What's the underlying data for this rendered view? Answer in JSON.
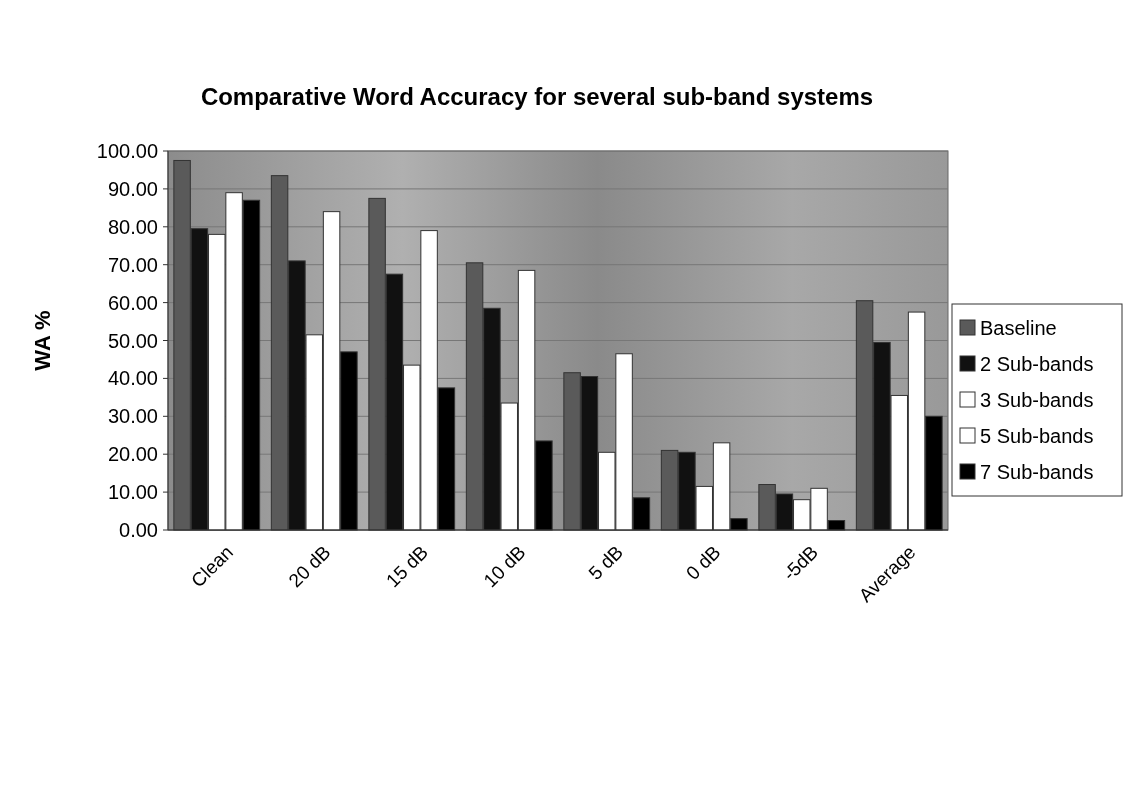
{
  "chart_data": {
    "type": "bar",
    "title": "Comparative Word Accuracy for several sub-band systems",
    "ylabel": "WA %",
    "categories": [
      "Clean",
      "20 dB",
      "15 dB",
      "10 dB",
      "5 dB",
      "0 dB",
      "-5dB",
      "Average"
    ],
    "series": [
      {
        "name": "Baseline",
        "color": "#5a5a5a",
        "values": [
          97.5,
          93.5,
          87.5,
          70.5,
          41.5,
          21,
          12,
          60.5
        ]
      },
      {
        "name": "2 Sub-bands",
        "color": "#111111",
        "values": [
          79.5,
          71,
          67.5,
          58.5,
          40.5,
          20.5,
          9.5,
          49.5
        ]
      },
      {
        "name": "3 Sub-bands",
        "color": "#ffffff",
        "values": [
          78,
          51.5,
          43.5,
          33.5,
          20.5,
          11.5,
          8,
          35.5
        ]
      },
      {
        "name": "5 Sub-bands",
        "color": "#ffffff",
        "values": [
          89,
          84,
          79,
          68.5,
          46.5,
          23,
          11,
          57.5
        ]
      },
      {
        "name": "7 Sub-bands",
        "color": "#000000",
        "values": [
          87,
          47,
          37.5,
          23.5,
          8.5,
          3,
          2.5,
          30
        ]
      }
    ],
    "ylim": [
      0,
      100
    ],
    "yticks": [
      {
        "value": 0,
        "label": "0.00"
      },
      {
        "value": 10,
        "label": "10.00"
      },
      {
        "value": 20,
        "label": "20.00"
      },
      {
        "value": 30,
        "label": "30.00"
      },
      {
        "value": 40,
        "label": "40.00"
      },
      {
        "value": 50,
        "label": "50.00"
      },
      {
        "value": 60,
        "label": "60.00"
      },
      {
        "value": 70,
        "label": "70.00"
      },
      {
        "value": 80,
        "label": "80.00"
      },
      {
        "value": 90,
        "label": "90.00"
      },
      {
        "value": 100,
        "label": "100.00"
      }
    ],
    "grid": "y",
    "legend": "right"
  }
}
